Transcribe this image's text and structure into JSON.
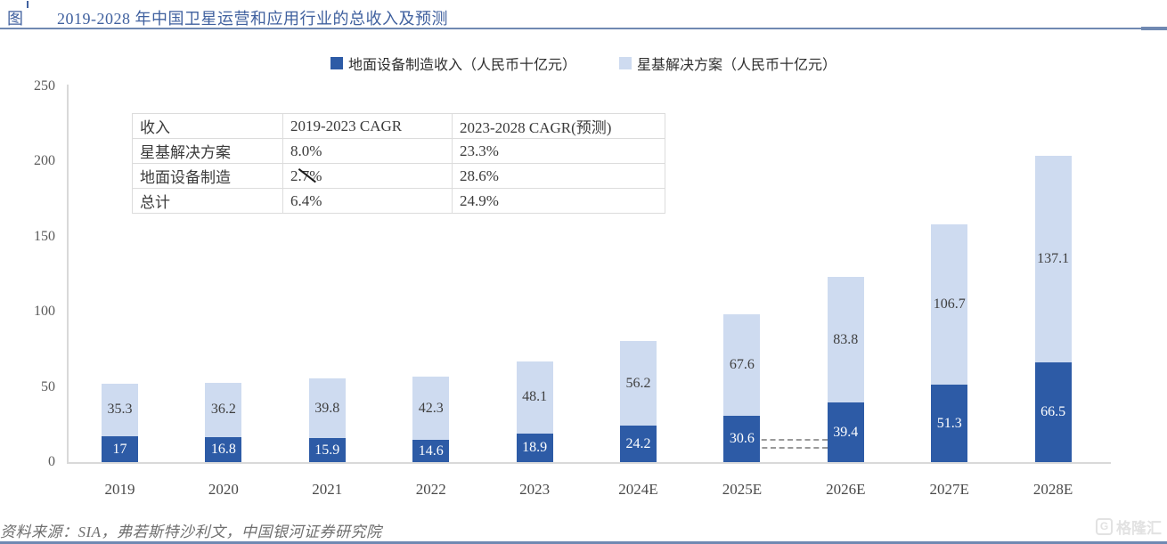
{
  "header": {
    "figure_label": "图",
    "title": "2019-2028 年中国卫星运营和应用行业的总收入及预测"
  },
  "legend": [
    {
      "label": "地面设备制造收入（人民币十亿元）",
      "color": "#2d5ba6"
    },
    {
      "label": "星基解决方案（人民币十亿元）",
      "color": "#cedbf0"
    }
  ],
  "cagr_table": {
    "headers": [
      "收入",
      "2019-2023 CAGR",
      "2023-2028 CAGR(预测)"
    ],
    "rows": [
      [
        "星基解决方案",
        "8.0%",
        "23.3%"
      ],
      [
        "地面设备制造",
        "2.7%",
        "28.6%"
      ],
      [
        "总计",
        "6.4%",
        "24.9%"
      ]
    ]
  },
  "chart_data": {
    "type": "bar",
    "stacked": true,
    "title": "2019-2028 年中国卫星运营和应用行业的总收入及预测",
    "categories": [
      "2019",
      "2020",
      "2021",
      "2022",
      "2023",
      "2024E",
      "2025E",
      "2026E",
      "2027E",
      "2028E"
    ],
    "series": [
      {
        "name": "地面设备制造收入（人民币十亿元）",
        "color": "#2d5ba6",
        "values": [
          17,
          16.8,
          15.9,
          14.6,
          18.9,
          24.2,
          30.6,
          39.4,
          51.3,
          66.5
        ],
        "labels": [
          "17",
          "16.8",
          "15.9",
          "14.6",
          "18.9",
          "24.2",
          "30.6",
          "39.4",
          "51.3",
          "66.5"
        ]
      },
      {
        "name": "星基解决方案（人民币十亿元）",
        "color": "#cedbf0",
        "values": [
          35.3,
          36.2,
          39.8,
          42.3,
          48.1,
          56.2,
          67.6,
          83.8,
          106.7,
          137.1
        ],
        "labels": [
          "35.3",
          "36.2",
          "39.8",
          "42.3",
          "48.1",
          "56.2",
          "67.6",
          "83.8",
          "106.7",
          "137.1"
        ]
      }
    ],
    "xlabel": "",
    "ylabel": "",
    "ylim": [
      0,
      250
    ],
    "yticks": [
      0,
      50,
      100,
      150,
      200,
      250
    ],
    "grid": false,
    "legend_position": "top"
  },
  "source": "资料来源：SIA，弗若斯特沙利文，中国银河证券研究院",
  "watermark": {
    "text": "格隆汇",
    "logo_glyph": "G"
  },
  "colors": {
    "title_blue": "#40619f",
    "rule_blue": "#7089b2",
    "dark_bar": "#2d5ba6",
    "light_bar": "#cedbf0",
    "axis_gray": "#d9d9d9"
  }
}
